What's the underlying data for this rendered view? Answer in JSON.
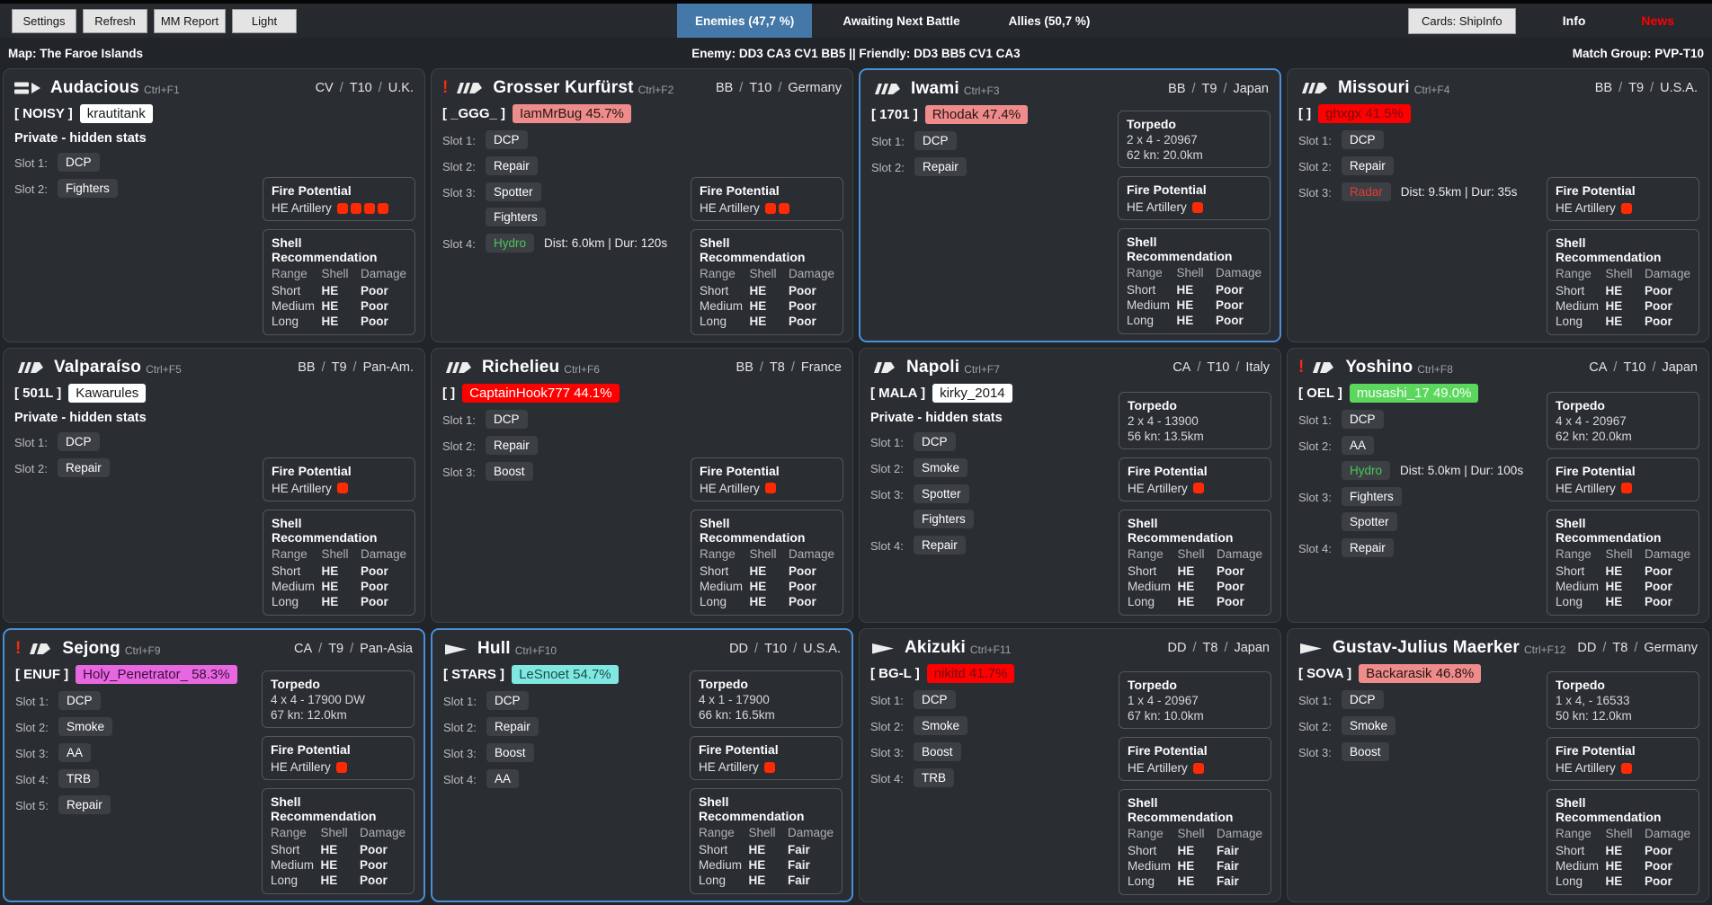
{
  "palette": {
    "page-bg": "#212428",
    "bar-bg": "#26292d",
    "card-bg": "#2a2d32",
    "card-border": "#3e4246",
    "panel-border": "#53575b",
    "selected-border": "#4b8fd6",
    "tab-blue": "#4478a8",
    "chip-bg": "#3c4044",
    "square-red": "#ff2a04",
    "alert-red": "#f22c11",
    "news-red": "#ff0000"
  },
  "top_bar": {
    "buttons": [
      "Settings",
      "Refresh",
      "MM Report",
      "Light"
    ],
    "tabs": [
      {
        "label": "Enemies (47,7 %)",
        "active": true
      },
      {
        "label": "Awaiting Next Battle",
        "active": false
      },
      {
        "label": "Allies (50,7 %)",
        "active": false
      }
    ],
    "cards_button": "Cards: ShipInfo",
    "info_label": "Info",
    "news_label": "News"
  },
  "info_bar": {
    "map": "Map: The Faroe Islands",
    "composition": "Enemy: DD3 CA3 CV1 BB5 || Friendly: DD3 BB5 CV1 CA3",
    "match_group": "Match Group: PVP-T10"
  },
  "ui": {
    "sep": "/",
    "private_label": "Private - hidden stats",
    "torpedo_title": "Torpedo",
    "fire_title": "Fire Potential",
    "fire_label": "HE Artillery",
    "shell_title": "Shell Recommendation",
    "shell_headers": [
      "Range",
      "Shell",
      "Damage"
    ]
  },
  "ships": [
    {
      "name": "Audacious",
      "hotkey": "Ctrl+F1",
      "klass": "CV",
      "tier": "T10",
      "nation": "U.K.",
      "icon": "cv",
      "alert": false,
      "selected": false,
      "clan": "[ NOISY ]",
      "player": {
        "text": "krautitank",
        "style": "private"
      },
      "private": true,
      "slots": [
        {
          "label": "Slot 1:",
          "chips": [
            {
              "text": "DCP"
            }
          ]
        },
        {
          "label": "Slot 2:",
          "chips": [
            {
              "text": "Fighters"
            }
          ]
        }
      ],
      "torpedo": null,
      "fire_squares": 4,
      "shell_rows": [
        [
          "Short",
          "HE",
          "Poor"
        ],
        [
          "Medium",
          "HE",
          "Poor"
        ],
        [
          "Long",
          "HE",
          "Poor"
        ]
      ]
    },
    {
      "name": "Grosser Kurfürst",
      "hotkey": "Ctrl+F2",
      "klass": "BB",
      "tier": "T10",
      "nation": "Germany",
      "icon": "bb",
      "alert": true,
      "selected": false,
      "clan": "[ _GGG_ ]",
      "player": {
        "text": "IamMrBug 45.7%",
        "style": "salmon"
      },
      "private": false,
      "slots": [
        {
          "label": "Slot 1:",
          "chips": [
            {
              "text": "DCP"
            }
          ]
        },
        {
          "label": "Slot 2:",
          "chips": [
            {
              "text": "Repair"
            }
          ]
        },
        {
          "label": "Slot 3:",
          "chips": [
            {
              "text": "Spotter"
            },
            {
              "text": "Fighters"
            }
          ]
        },
        {
          "label": "Slot 4:",
          "chips": [
            {
              "text": "Hydro",
              "color": "green",
              "extra": "Dist: 6.0km | Dur: 120s"
            }
          ]
        }
      ],
      "torpedo": null,
      "fire_squares": 2,
      "shell_rows": [
        [
          "Short",
          "HE",
          "Poor"
        ],
        [
          "Medium",
          "HE",
          "Poor"
        ],
        [
          "Long",
          "HE",
          "Poor"
        ]
      ]
    },
    {
      "name": "Iwami",
      "hotkey": "Ctrl+F3",
      "klass": "BB",
      "tier": "T9",
      "nation": "Japan",
      "icon": "bb",
      "alert": false,
      "selected": true,
      "clan": "[ 1701 ]",
      "player": {
        "text": "Rhodak 47.4%",
        "style": "salmon"
      },
      "private": false,
      "slots": [
        {
          "label": "Slot 1:",
          "chips": [
            {
              "text": "DCP"
            }
          ]
        },
        {
          "label": "Slot 2:",
          "chips": [
            {
              "text": "Repair"
            }
          ]
        }
      ],
      "torpedo": {
        "line1": "2 x 4 - 20967",
        "line2": "62 kn: 20.0km"
      },
      "fire_squares": 1,
      "shell_rows": [
        [
          "Short",
          "HE",
          "Poor"
        ],
        [
          "Medium",
          "HE",
          "Poor"
        ],
        [
          "Long",
          "HE",
          "Poor"
        ]
      ]
    },
    {
      "name": "Missouri",
      "hotkey": "Ctrl+F4",
      "klass": "BB",
      "tier": "T9",
      "nation": "U.S.A.",
      "icon": "bb",
      "alert": false,
      "selected": false,
      "clan": "[ ]",
      "player": {
        "text": "ghxgx 41.5%",
        "style": "red-dark"
      },
      "private": false,
      "slots": [
        {
          "label": "Slot 1:",
          "chips": [
            {
              "text": "DCP"
            }
          ]
        },
        {
          "label": "Slot 2:",
          "chips": [
            {
              "text": "Repair"
            }
          ]
        },
        {
          "label": "Slot 3:",
          "chips": [
            {
              "text": "Radar",
              "color": "red",
              "extra": "Dist: 9.5km | Dur: 35s"
            }
          ]
        }
      ],
      "torpedo": null,
      "fire_squares": 1,
      "shell_rows": [
        [
          "Short",
          "HE",
          "Poor"
        ],
        [
          "Medium",
          "HE",
          "Poor"
        ],
        [
          "Long",
          "HE",
          "Poor"
        ]
      ]
    },
    {
      "name": "Valparaíso",
      "hotkey": "Ctrl+F5",
      "klass": "BB",
      "tier": "T9",
      "nation": "Pan-Am.",
      "icon": "bb",
      "alert": false,
      "selected": false,
      "clan": "[ 501L ]",
      "player": {
        "text": "Kawarules",
        "style": "private"
      },
      "private": true,
      "slots": [
        {
          "label": "Slot 1:",
          "chips": [
            {
              "text": "DCP"
            }
          ]
        },
        {
          "label": "Slot 2:",
          "chips": [
            {
              "text": "Repair"
            }
          ]
        }
      ],
      "torpedo": null,
      "fire_squares": 1,
      "shell_rows": [
        [
          "Short",
          "HE",
          "Poor"
        ],
        [
          "Medium",
          "HE",
          "Poor"
        ],
        [
          "Long",
          "HE",
          "Poor"
        ]
      ]
    },
    {
      "name": "Richelieu",
      "hotkey": "Ctrl+F6",
      "klass": "BB",
      "tier": "T8",
      "nation": "France",
      "icon": "bb",
      "alert": false,
      "selected": false,
      "clan": "[ ]",
      "player": {
        "text": "CaptainHook777 44.1%",
        "style": "red-light"
      },
      "private": false,
      "slots": [
        {
          "label": "Slot 1:",
          "chips": [
            {
              "text": "DCP"
            }
          ]
        },
        {
          "label": "Slot 2:",
          "chips": [
            {
              "text": "Repair"
            }
          ]
        },
        {
          "label": "Slot 3:",
          "chips": [
            {
              "text": "Boost"
            }
          ]
        }
      ],
      "torpedo": null,
      "fire_squares": 1,
      "shell_rows": [
        [
          "Short",
          "HE",
          "Poor"
        ],
        [
          "Medium",
          "HE",
          "Poor"
        ],
        [
          "Long",
          "HE",
          "Poor"
        ]
      ]
    },
    {
      "name": "Napoli",
      "hotkey": "Ctrl+F7",
      "klass": "CA",
      "tier": "T10",
      "nation": "Italy",
      "icon": "ca",
      "alert": false,
      "selected": false,
      "clan": "[ MALA ]",
      "player": {
        "text": "kirky_2014",
        "style": "private"
      },
      "private": true,
      "slots": [
        {
          "label": "Slot 1:",
          "chips": [
            {
              "text": "DCP"
            }
          ]
        },
        {
          "label": "Slot 2:",
          "chips": [
            {
              "text": "Smoke"
            }
          ]
        },
        {
          "label": "Slot 3:",
          "chips": [
            {
              "text": "Spotter"
            },
            {
              "text": "Fighters"
            }
          ]
        },
        {
          "label": "Slot 4:",
          "chips": [
            {
              "text": "Repair"
            }
          ]
        }
      ],
      "torpedo": {
        "line1": "2 x 4 - 13900",
        "line2": "56 kn: 13.5km"
      },
      "fire_squares": 1,
      "shell_rows": [
        [
          "Short",
          "HE",
          "Poor"
        ],
        [
          "Medium",
          "HE",
          "Poor"
        ],
        [
          "Long",
          "HE",
          "Poor"
        ]
      ]
    },
    {
      "name": "Yoshino",
      "hotkey": "Ctrl+F8",
      "klass": "CA",
      "tier": "T10",
      "nation": "Japan",
      "icon": "ca",
      "alert": true,
      "selected": false,
      "clan": "[ OEL ]",
      "player": {
        "text": "musashi_17 49.0%",
        "style": "green"
      },
      "private": false,
      "slots": [
        {
          "label": "Slot 1:",
          "chips": [
            {
              "text": "DCP"
            }
          ]
        },
        {
          "label": "Slot 2:",
          "chips": [
            {
              "text": "AA"
            },
            {
              "text": "Hydro",
              "color": "green",
              "extra": "Dist: 5.0km | Dur: 100s"
            }
          ]
        },
        {
          "label": "Slot 3:",
          "chips": [
            {
              "text": "Fighters"
            },
            {
              "text": "Spotter"
            }
          ]
        },
        {
          "label": "Slot 4:",
          "chips": [
            {
              "text": "Repair"
            }
          ]
        }
      ],
      "torpedo": {
        "line1": "4 x 4 - 20967",
        "line2": "62 kn: 20.0km"
      },
      "fire_squares": 1,
      "shell_rows": [
        [
          "Short",
          "HE",
          "Poor"
        ],
        [
          "Medium",
          "HE",
          "Poor"
        ],
        [
          "Long",
          "HE",
          "Poor"
        ]
      ]
    },
    {
      "name": "Sejong",
      "hotkey": "Ctrl+F9",
      "klass": "CA",
      "tier": "T9",
      "nation": "Pan-Asia",
      "icon": "ca",
      "alert": true,
      "selected": true,
      "clan": "[ ENUF ]",
      "player": {
        "text": "Holy_Penetrator_ 58.3%",
        "style": "magenta"
      },
      "private": false,
      "slots": [
        {
          "label": "Slot 1:",
          "chips": [
            {
              "text": "DCP"
            }
          ]
        },
        {
          "label": "Slot 2:",
          "chips": [
            {
              "text": "Smoke"
            }
          ]
        },
        {
          "label": "Slot 3:",
          "chips": [
            {
              "text": "AA"
            }
          ]
        },
        {
          "label": "Slot 4:",
          "chips": [
            {
              "text": "TRB"
            }
          ]
        },
        {
          "label": "Slot 5:",
          "chips": [
            {
              "text": "Repair"
            }
          ]
        }
      ],
      "torpedo": {
        "line1": "4 x 4 - 17900 DW",
        "line2": "67 kn: 12.0km"
      },
      "fire_squares": 1,
      "shell_rows": [
        [
          "Short",
          "HE",
          "Poor"
        ],
        [
          "Medium",
          "HE",
          "Poor"
        ],
        [
          "Long",
          "HE",
          "Poor"
        ]
      ]
    },
    {
      "name": "Hull",
      "hotkey": "Ctrl+F10",
      "klass": "DD",
      "tier": "T10",
      "nation": "U.S.A.",
      "icon": "dd",
      "alert": false,
      "selected": true,
      "clan": "[ STARS ]",
      "player": {
        "text": "LeSnoet 54.7%",
        "style": "cyan"
      },
      "private": false,
      "slots": [
        {
          "label": "Slot 1:",
          "chips": [
            {
              "text": "DCP"
            }
          ]
        },
        {
          "label": "Slot 2:",
          "chips": [
            {
              "text": "Repair"
            }
          ]
        },
        {
          "label": "Slot 3:",
          "chips": [
            {
              "text": "Boost"
            }
          ]
        },
        {
          "label": "Slot 4:",
          "chips": [
            {
              "text": "AA"
            }
          ]
        }
      ],
      "torpedo": {
        "line1": "4 x 1 - 17900",
        "line2": "66 kn: 16.5km"
      },
      "fire_squares": 1,
      "shell_rows": [
        [
          "Short",
          "HE",
          "Fair"
        ],
        [
          "Medium",
          "HE",
          "Fair"
        ],
        [
          "Long",
          "HE",
          "Fair"
        ]
      ]
    },
    {
      "name": "Akizuki",
      "hotkey": "Ctrl+F11",
      "klass": "DD",
      "tier": "T8",
      "nation": "Japan",
      "icon": "dd",
      "alert": false,
      "selected": false,
      "clan": "[ BG-L ]",
      "player": {
        "text": "nikitd 41.7%",
        "style": "red-dark"
      },
      "private": false,
      "slots": [
        {
          "label": "Slot 1:",
          "chips": [
            {
              "text": "DCP"
            }
          ]
        },
        {
          "label": "Slot 2:",
          "chips": [
            {
              "text": "Smoke"
            }
          ]
        },
        {
          "label": "Slot 3:",
          "chips": [
            {
              "text": "Boost"
            }
          ]
        },
        {
          "label": "Slot 4:",
          "chips": [
            {
              "text": "TRB"
            }
          ]
        }
      ],
      "torpedo": {
        "line1": "1 x 4 - 20967",
        "line2": "67 kn: 10.0km"
      },
      "fire_squares": 1,
      "shell_rows": [
        [
          "Short",
          "HE",
          "Fair"
        ],
        [
          "Medium",
          "HE",
          "Fair"
        ],
        [
          "Long",
          "HE",
          "Fair"
        ]
      ]
    },
    {
      "name": "Gustav-Julius Maerker",
      "hotkey": "Ctrl+F12",
      "klass": "DD",
      "tier": "T8",
      "nation": "Germany",
      "icon": "dd",
      "alert": false,
      "selected": false,
      "clan": "[ SOVA ]",
      "player": {
        "text": "Backarasik 46.8%",
        "style": "salmon"
      },
      "private": false,
      "slots": [
        {
          "label": "Slot 1:",
          "chips": [
            {
              "text": "DCP"
            }
          ]
        },
        {
          "label": "Slot 2:",
          "chips": [
            {
              "text": "Smoke"
            }
          ]
        },
        {
          "label": "Slot 3:",
          "chips": [
            {
              "text": "Boost"
            }
          ]
        }
      ],
      "torpedo": {
        "line1": "1 x 4, - 16533",
        "line2": "50 kn: 12.0km"
      },
      "fire_squares": 1,
      "shell_rows": [
        [
          "Short",
          "HE",
          "Poor"
        ],
        [
          "Medium",
          "HE",
          "Poor"
        ],
        [
          "Long",
          "HE",
          "Poor"
        ]
      ]
    }
  ]
}
